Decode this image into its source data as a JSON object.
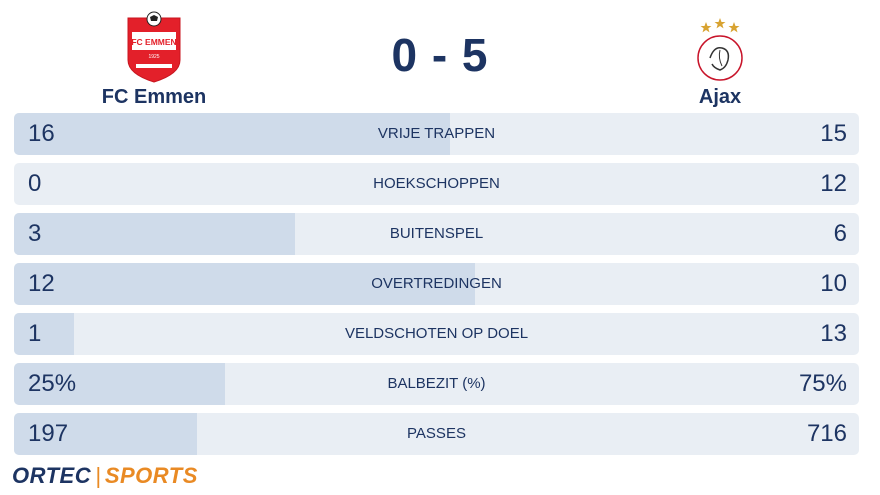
{
  "match": {
    "home_team": "FC Emmen",
    "away_team": "Ajax",
    "score": "0 - 5",
    "home_logo_text": "FC EMMEN",
    "home_logo_year": "1925"
  },
  "stats": [
    {
      "label": "VRIJE TRAPPEN",
      "home": "16",
      "away": "15",
      "home_share": 0.516
    },
    {
      "label": "HOEKSCHOPPEN",
      "home": "0",
      "away": "12",
      "home_share": 0.0
    },
    {
      "label": "BUITENSPEL",
      "home": "3",
      "away": "6",
      "home_share": 0.333
    },
    {
      "label": "OVERTREDINGEN",
      "home": "12",
      "away": "10",
      "home_share": 0.545
    },
    {
      "label": "VELDSCHOTEN OP DOEL",
      "home": "1",
      "away": "13",
      "home_share": 0.071
    },
    {
      "label": "BALBEZIT (%)",
      "home": "25%",
      "away": "75%",
      "home_share": 0.25
    },
    {
      "label": "PASSES",
      "home": "197",
      "away": "716",
      "home_share": 0.216
    }
  ],
  "brand": {
    "part1": "ORTEC",
    "separator": "|",
    "part2": "SPORTS"
  },
  "colors": {
    "navy": "#1d3462",
    "row_bg": "#e9eef4",
    "row_fill": "#cfdbea",
    "accent_orange": "#e98a24",
    "emmen_red": "#e3202a"
  }
}
